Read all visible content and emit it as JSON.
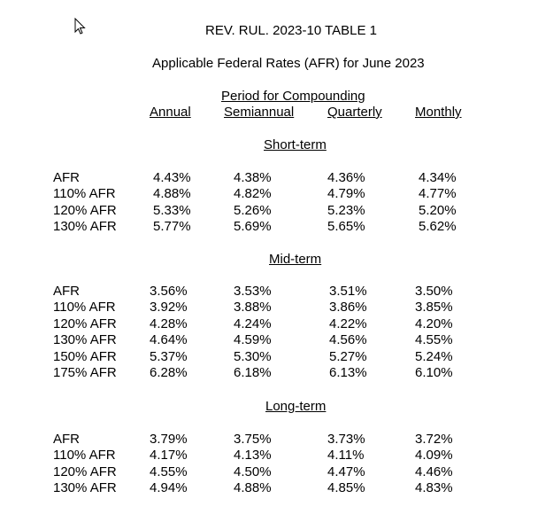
{
  "title": "REV. RUL. 2023-10 TABLE 1",
  "subtitle": "Applicable Federal Rates (AFR) for June 2023",
  "period_header": "Period for Compounding",
  "columns": [
    "Annual",
    "Semiannual",
    "Quarterly",
    "Monthly"
  ],
  "sections": [
    {
      "name": "Short-term",
      "rows": [
        {
          "label": "AFR",
          "values": [
            "4.43%",
            "4.38%",
            "4.36%",
            "4.34%"
          ]
        },
        {
          "label": "110% AFR",
          "values": [
            "4.88%",
            "4.82%",
            "4.79%",
            "4.77%"
          ]
        },
        {
          "label": "120% AFR",
          "values": [
            "5.33%",
            "5.26%",
            "5.23%",
            "5.20%"
          ]
        },
        {
          "label": "130% AFR",
          "values": [
            "5.77%",
            "5.69%",
            "5.65%",
            "5.62%"
          ]
        }
      ]
    },
    {
      "name": "Mid-term",
      "rows": [
        {
          "label": "AFR",
          "values": [
            "3.56%",
            "3.53%",
            "3.51%",
            "3.50%"
          ]
        },
        {
          "label": "110% AFR",
          "values": [
            "3.92%",
            "3.88%",
            "3.86%",
            "3.85%"
          ]
        },
        {
          "label": "120% AFR",
          "values": [
            "4.28%",
            "4.24%",
            "4.22%",
            "4.20%"
          ]
        },
        {
          "label": "130% AFR",
          "values": [
            "4.64%",
            "4.59%",
            "4.56%",
            "4.55%"
          ]
        },
        {
          "label": "150% AFR",
          "values": [
            "5.37%",
            "5.30%",
            "5.27%",
            "5.24%"
          ]
        },
        {
          "label": "175% AFR",
          "values": [
            "6.28%",
            "6.18%",
            "6.13%",
            "6.10%"
          ]
        }
      ]
    },
    {
      "name": "Long-term",
      "rows": [
        {
          "label": "AFR",
          "values": [
            "3.79%",
            "3.75%",
            "3.73%",
            "3.72%"
          ]
        },
        {
          "label": "110% AFR",
          "values": [
            "4.17%",
            "4.13%",
            "4.11%",
            "4.09%"
          ]
        },
        {
          "label": "120% AFR",
          "values": [
            "4.55%",
            "4.50%",
            "4.47%",
            "4.46%"
          ]
        },
        {
          "label": "130% AFR",
          "values": [
            "4.94%",
            "4.88%",
            "4.85%",
            "4.83%"
          ]
        }
      ]
    }
  ]
}
